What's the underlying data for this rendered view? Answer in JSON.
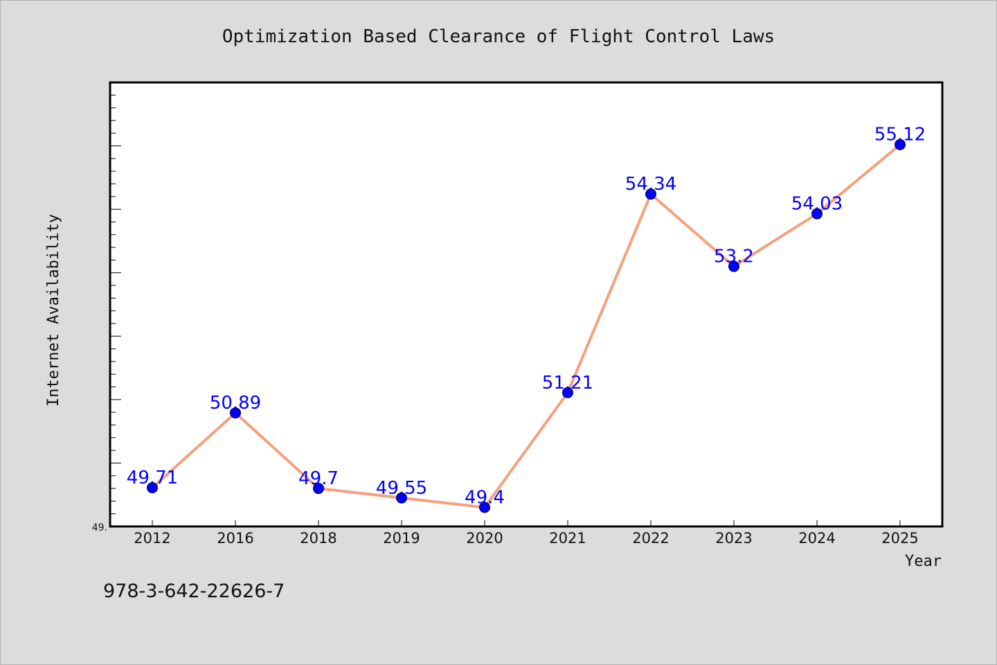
{
  "chart_data": {
    "type": "line",
    "title": "Optimization Based Clearance of Flight Control Laws",
    "xlabel": "Year",
    "ylabel": "Internet Availability",
    "categories": [
      "2012",
      "2016",
      "2018",
      "2019",
      "2020",
      "2021",
      "2022",
      "2023",
      "2024",
      "2025"
    ],
    "series": [
      {
        "values": [
          49.71,
          50.89,
          49.7,
          49.55,
          49.4,
          51.21,
          54.34,
          53.2,
          54.03,
          55.12
        ],
        "labels": [
          "49.71",
          "50.89",
          "49.7",
          "49.55",
          "49.4",
          "51.21",
          "54.34",
          "53.2",
          "54.03",
          "55.12"
        ]
      }
    ],
    "ylim": [
      49.1,
      56.1
    ],
    "y_tick_label": "49.",
    "line_color": "#f4a07c",
    "marker_color": "#0000ff",
    "label_color": "#0000ff",
    "grid": false,
    "legend": "none"
  },
  "footer": {
    "text": "978-3-642-22626-7"
  }
}
